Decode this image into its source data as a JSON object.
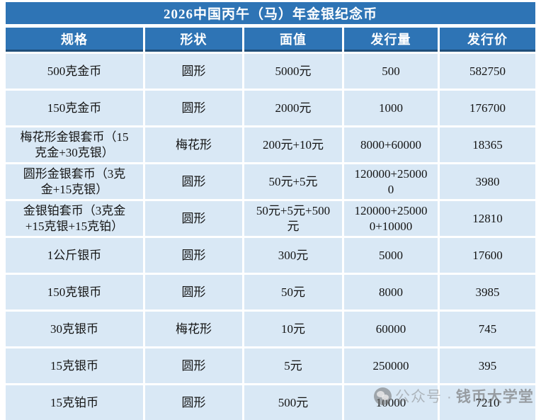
{
  "title": "2026中国丙午（马）年金银纪念币",
  "colors": {
    "header_blue": "#2e74b5",
    "header_border_navy": "#1f4e79",
    "row_bg_light_blue": "#d9e8f5",
    "title_text": "#ffffff",
    "body_text": "#141414",
    "watermark_gray": "#6e6e6e"
  },
  "table": {
    "columns": [
      "规格",
      "形状",
      "面值",
      "发行量",
      "发行价"
    ],
    "rows": [
      [
        "500克金币",
        "圆形",
        "5000元",
        "500",
        "582750"
      ],
      [
        "150克金币",
        "圆形",
        "2000元",
        "1000",
        "176700"
      ],
      [
        "梅花形金银套币（15\n克金+30克银）",
        "梅花形",
        "200元+10元",
        "8000+60000",
        "18365"
      ],
      [
        "圆形金银套币（3克\n金+15克银）",
        "圆形",
        "50元+5元",
        "120000+25000\n0",
        "3980"
      ],
      [
        "金银铂套币（3克金\n+15克银+15克铂）",
        "圆形",
        "50元+5元+500\n元",
        "120000+25000\n0+10000",
        "12810"
      ],
      [
        "1公斤银币",
        "圆形",
        "300元",
        "5000",
        "17600"
      ],
      [
        "150克银币",
        "圆形",
        "50元",
        "8000",
        "3985"
      ],
      [
        "30克银币",
        "梅花形",
        "10元",
        "60000",
        "745"
      ],
      [
        "15克银币",
        "圆形",
        "5元",
        "250000",
        "395"
      ],
      [
        "15克铂币",
        "圆形",
        "500元",
        "10000",
        "7210"
      ]
    ]
  },
  "watermark": {
    "icon": "wechat-icon",
    "prefix": "公众号 ·",
    "name": "钱币大学堂"
  }
}
